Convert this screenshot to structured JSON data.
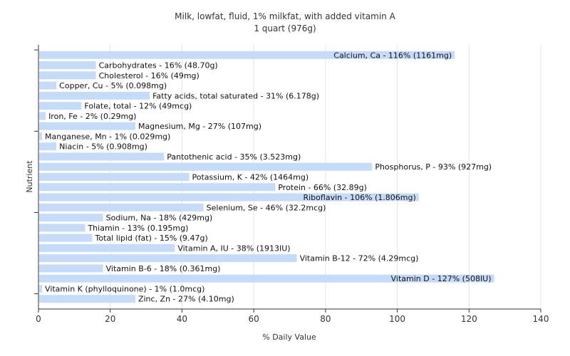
{
  "chart_data": {
    "type": "bar",
    "orientation": "horizontal",
    "title": "Milk, lowfat, fluid, 1% milkfat, with added vitamin A",
    "subtitle": "1 quart (976g)",
    "xlabel": "% Daily Value",
    "ylabel": "Nutrient",
    "xlim": [
      0,
      140
    ],
    "xticks": [
      "0",
      "20",
      "40",
      "60",
      "80",
      "100",
      "120",
      "140"
    ],
    "grid": true,
    "bar_color": "#c6dbf7",
    "categories": [
      "Calcium, Ca",
      "Carbohydrates",
      "Cholesterol",
      "Copper, Cu",
      "Fatty acids, total saturated",
      "Folate, total",
      "Iron, Fe",
      "Magnesium, Mg",
      "Manganese, Mn",
      "Niacin",
      "Pantothenic acid",
      "Phosphorus, P",
      "Potassium, K",
      "Protein",
      "Riboflavin",
      "Selenium, Se",
      "Sodium, Na",
      "Thiamin",
      "Total lipid (fat)",
      "Vitamin A, IU",
      "Vitamin B-12",
      "Vitamin B-6",
      "Vitamin D",
      "Vitamin K (phylloquinone)",
      "Zinc, Zn"
    ],
    "values": [
      116,
      16,
      16,
      5,
      31,
      12,
      2,
      27,
      1,
      5,
      35,
      93,
      42,
      66,
      106,
      46,
      18,
      13,
      15,
      38,
      72,
      18,
      127,
      1,
      27
    ],
    "labels": [
      "Calcium, Ca - 116% (1161mg)",
      "Carbohydrates - 16% (48.70g)",
      "Cholesterol - 16% (49mg)",
      "Copper, Cu - 5% (0.098mg)",
      "Fatty acids, total saturated - 31% (6.178g)",
      "Folate, total - 12% (49mcg)",
      "Iron, Fe - 2% (0.29mg)",
      "Magnesium, Mg - 27% (107mg)",
      "Manganese, Mn - 1% (0.029mg)",
      "Niacin - 5% (0.908mg)",
      "Pantothenic acid - 35% (3.523mg)",
      "Phosphorus, P - 93% (927mg)",
      "Potassium, K - 42% (1464mg)",
      "Protein - 66% (32.89g)",
      "Riboflavin - 106% (1.806mg)",
      "Selenium, Se - 46% (32.2mcg)",
      "Sodium, Na - 18% (429mg)",
      "Thiamin - 13% (0.195mg)",
      "Total lipid (fat) - 15% (9.47g)",
      "Vitamin A, IU - 38% (1913IU)",
      "Vitamin B-12 - 72% (4.29mcg)",
      "Vitamin B-6 - 18% (0.361mg)",
      "Vitamin D - 127% (508IU)",
      "Vitamin K (phylloquinone) - 1% (1.0mcg)",
      "Zinc, Zn - 27% (4.10mg)"
    ]
  }
}
